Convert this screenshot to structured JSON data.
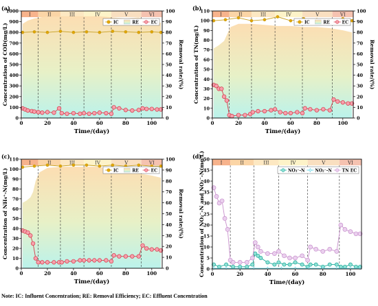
{
  "note": "Note: IC: Influent Concentration; RE: Removal Efficiency; EC: Effluent Concentration",
  "phases": [
    "I",
    "II",
    "III",
    "IV",
    "V",
    "VI"
  ],
  "phase_colors": [
    "#f7b38c",
    "#fbd5a6",
    "#fde8c2",
    "#fdf3c8",
    "#f9dfc0",
    "#f5c2b0"
  ],
  "x_ticks": [
    0,
    20,
    40,
    60,
    80,
    100
  ],
  "y2_ticks": [
    0,
    10,
    20,
    30,
    40,
    50,
    60,
    70,
    80,
    90,
    100
  ],
  "chart_data": [
    {
      "type": "line",
      "panel_label": "(a)",
      "xlabel": "Time/(day)",
      "ylabel": "Concentration of COD(mg/L)",
      "y2label": "Removal rate/(%)",
      "xlim": [
        0,
        108
      ],
      "ylim": [
        0,
        1000
      ],
      "y_ticks": [
        0,
        100,
        200,
        300,
        400,
        500,
        600,
        700,
        800,
        900,
        1000
      ],
      "y2lim": [
        0,
        100
      ],
      "phase_boundaries": [
        13,
        30,
        48,
        69,
        92
      ],
      "legend": [
        "IC",
        "RE",
        "EC"
      ],
      "series": [
        {
          "name": "IC",
          "x": [
            1,
            10,
            20,
            30,
            40,
            50,
            60,
            70,
            80,
            90,
            100,
            107
          ],
          "values": [
            800,
            805,
            800,
            810,
            800,
            805,
            800,
            810,
            805,
            800,
            805,
            800
          ]
        },
        {
          "name": "RE",
          "x": [
            1,
            5,
            10,
            15,
            20,
            30,
            40,
            50,
            60,
            70,
            80,
            90,
            100,
            107
          ],
          "values": [
            88,
            91,
            93,
            94,
            95,
            95,
            95,
            95,
            95,
            94,
            93,
            94,
            90,
            89
          ]
        },
        {
          "name": "EC",
          "x": [
            1,
            3,
            5,
            8,
            10,
            13,
            16,
            20,
            25,
            29,
            31,
            35,
            40,
            45,
            48,
            52,
            56,
            60,
            65,
            69,
            71,
            75,
            80,
            85,
            90,
            93,
            96,
            100,
            104,
            107
          ],
          "values": [
            90,
            80,
            70,
            65,
            60,
            55,
            50,
            55,
            50,
            90,
            45,
            40,
            45,
            40,
            45,
            40,
            45,
            50,
            45,
            40,
            100,
            90,
            75,
            70,
            75,
            90,
            85,
            85,
            80,
            80
          ]
        }
      ]
    },
    {
      "type": "line",
      "panel_label": "(b)",
      "xlabel": "Time/(day)",
      "ylabel": "Concentration of TN(mg/L)",
      "y2label": "Removal rate/(%)",
      "xlim": [
        0,
        108
      ],
      "ylim": [
        0,
        110
      ],
      "y_ticks": [
        0,
        10,
        20,
        30,
        40,
        50,
        60,
        70,
        80,
        90,
        100,
        110
      ],
      "y2lim": [
        0,
        100
      ],
      "phase_boundaries": [
        13,
        30,
        48,
        69,
        92
      ],
      "legend": [
        "IC",
        "RE",
        "EC"
      ],
      "series": [
        {
          "name": "IC",
          "x": [
            1,
            10,
            20,
            30,
            40,
            50,
            60,
            70,
            80,
            90,
            100,
            107
          ],
          "values": [
            100,
            101,
            103,
            100,
            101,
            104,
            100,
            102,
            101,
            100,
            102,
            100
          ]
        },
        {
          "name": "RE",
          "x": [
            1,
            5,
            9,
            12,
            14,
            20,
            30,
            40,
            50,
            60,
            70,
            80,
            90,
            100,
            107
          ],
          "values": [
            65,
            68,
            72,
            80,
            85,
            88,
            88,
            87,
            86,
            86,
            85,
            85,
            84,
            82,
            80
          ]
        },
        {
          "name": "EC",
          "x": [
            1,
            3,
            5,
            7,
            9,
            11,
            13,
            15,
            20,
            25,
            29,
            31,
            35,
            40,
            45,
            48,
            52,
            56,
            60,
            65,
            69,
            71,
            75,
            80,
            85,
            90,
            93,
            96,
            100,
            104,
            107
          ],
          "values": [
            34,
            33,
            30,
            30,
            22,
            18,
            3,
            2,
            3,
            3,
            4,
            6,
            7,
            7,
            8,
            9,
            6,
            5,
            5,
            6,
            5,
            10,
            9,
            8,
            9,
            8,
            19,
            17,
            16,
            15,
            15
          ]
        }
      ]
    },
    {
      "type": "line",
      "panel_label": "(c)",
      "xlabel": "Time/(day)",
      "ylabel": "Concentration of NH₄⁺-N(mg/L)",
      "y2label": "Removal rate/(%)",
      "xlim": [
        0,
        108
      ],
      "ylim": [
        0,
        110
      ],
      "y_ticks": [
        0,
        10,
        20,
        30,
        40,
        50,
        60,
        70,
        80,
        90,
        100,
        110
      ],
      "y2lim": [
        0,
        100
      ],
      "phase_boundaries": [
        13,
        30,
        48,
        69,
        92
      ],
      "legend": [
        "IC",
        "RE",
        "EC"
      ],
      "series": [
        {
          "name": "IC",
          "x": [
            1,
            10,
            20,
            30,
            40,
            50,
            60,
            70,
            80,
            90,
            100,
            107
          ],
          "values": [
            102,
            103,
            104,
            103,
            104,
            104,
            103,
            104,
            103,
            104,
            103,
            103
          ]
        },
        {
          "name": "RE",
          "x": [
            1,
            4,
            7,
            9,
            11,
            14,
            20,
            30,
            40,
            50,
            60,
            70,
            80,
            90,
            100,
            107
          ],
          "values": [
            60,
            62,
            65,
            70,
            80,
            88,
            92,
            93,
            93,
            93,
            93,
            90,
            88,
            87,
            85,
            83
          ]
        },
        {
          "name": "EC",
          "x": [
            1,
            3,
            5,
            7,
            9,
            11,
            13,
            16,
            20,
            25,
            29,
            31,
            35,
            40,
            45,
            48,
            52,
            56,
            60,
            65,
            69,
            71,
            75,
            80,
            85,
            90,
            93,
            96,
            100,
            104,
            107
          ],
          "values": [
            38,
            37,
            36,
            33,
            25,
            10,
            6,
            6,
            6,
            6,
            6,
            6,
            7,
            7,
            8,
            8,
            8,
            8,
            8,
            8,
            7,
            13,
            12,
            12,
            12,
            12,
            23,
            20,
            19,
            19,
            18
          ]
        }
      ]
    },
    {
      "type": "line",
      "panel_label": "(d)",
      "xlabel": "Time/(day)",
      "ylabel": "Concentration of NO₂⁻-N and NO₃⁻-N(mg/L)",
      "xlim": [
        0,
        108
      ],
      "ylim": [
        0,
        50
      ],
      "y_ticks": [
        0,
        5,
        10,
        15,
        20,
        25,
        30,
        35,
        40,
        45,
        50
      ],
      "phase_boundaries": [
        13,
        30,
        48,
        69,
        92
      ],
      "legend": [
        "NO₃⁻-N",
        "NO₂⁻-N",
        "TN EC"
      ],
      "series": [
        {
          "name": "NO₃⁻-N",
          "x": [
            1,
            5,
            10,
            15,
            20,
            25,
            29,
            31,
            33,
            35,
            40,
            45,
            48,
            52,
            56,
            60,
            65,
            69,
            71,
            75,
            80,
            85,
            90,
            93,
            96,
            100,
            104,
            107
          ],
          "values": [
            2,
            1,
            2,
            1,
            1,
            1,
            2,
            7,
            6,
            5,
            3,
            2,
            3,
            2,
            2,
            3,
            2,
            1,
            2,
            2,
            1,
            2,
            2,
            1,
            1,
            2,
            1,
            1
          ]
        },
        {
          "name": "NO₂⁻-N",
          "x": [
            1,
            10,
            20,
            30,
            40,
            50,
            60,
            70,
            80,
            90,
            100,
            107
          ],
          "values": [
            0.3,
            0.3,
            0.2,
            0.3,
            0.3,
            0.3,
            0.3,
            0.3,
            0.3,
            0.3,
            0.3,
            0.3
          ]
        },
        {
          "name": "TN EC",
          "x": [
            1,
            3,
            5,
            7,
            9,
            11,
            13,
            15,
            20,
            25,
            29,
            31,
            33,
            35,
            40,
            45,
            48,
            52,
            56,
            60,
            65,
            69,
            71,
            75,
            80,
            85,
            90,
            93,
            96,
            100,
            104,
            107
          ],
          "values": [
            37,
            33,
            30,
            31,
            23,
            18,
            4,
            3,
            3,
            3,
            5,
            12,
            10,
            8,
            7,
            7,
            8,
            6,
            5,
            5,
            6,
            4,
            10,
            9,
            8,
            9,
            8,
            20,
            18,
            17,
            16,
            16
          ]
        }
      ]
    }
  ],
  "colors": {
    "ic": "#e2a400",
    "ic_line": "#c8a020",
    "ec": "#d63a4a",
    "ec_fill": "#f6a0ac",
    "re_top": "#fcdcae",
    "re_bottom": "#b7f1ea",
    "no3": "#1ba99a",
    "no2": "#5ad2e4",
    "tn": "#c890cc"
  }
}
